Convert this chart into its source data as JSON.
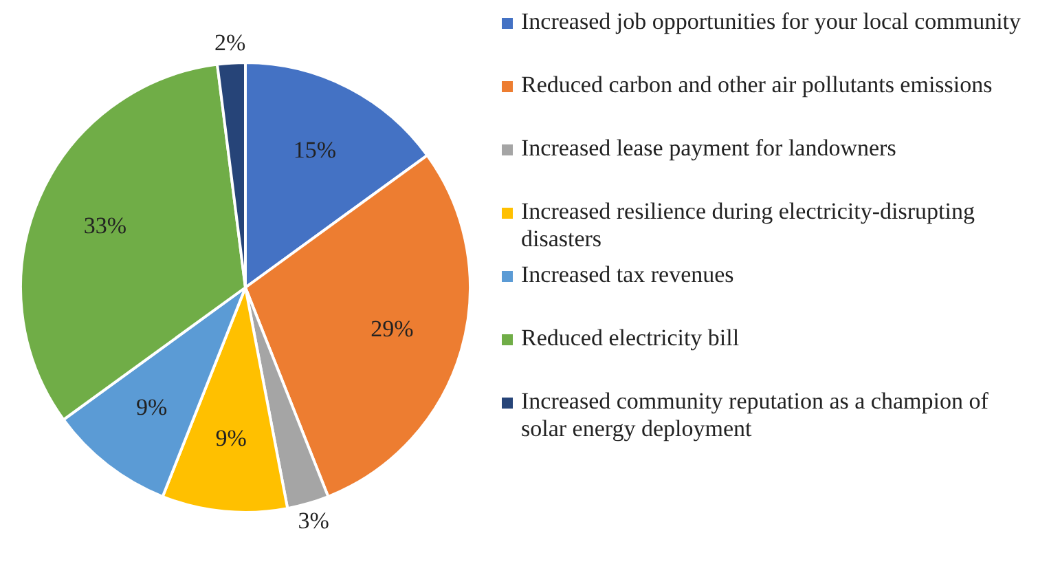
{
  "chart_data": {
    "type": "pie",
    "categories": [
      "Increased job opportunities for your local community",
      "Reduced carbon and other air pollutants emissions",
      "Increased lease payment for landowners",
      "Increased resilience during electricity-disrupting disasters",
      "Increased tax revenues",
      "Reduced electricity bill",
      "Increased community reputation as a champion of solar energy deployment"
    ],
    "values": [
      15,
      29,
      3,
      9,
      9,
      33,
      2
    ],
    "value_labels": [
      "15%",
      "29%",
      "3%",
      "9%",
      "9%",
      "33%",
      "2%"
    ],
    "colors": [
      "#4472c4",
      "#ed7d31",
      "#a5a5a5",
      "#ffc000",
      "#5b9bd5",
      "#70ad47",
      "#264478"
    ],
    "legend": "right"
  }
}
